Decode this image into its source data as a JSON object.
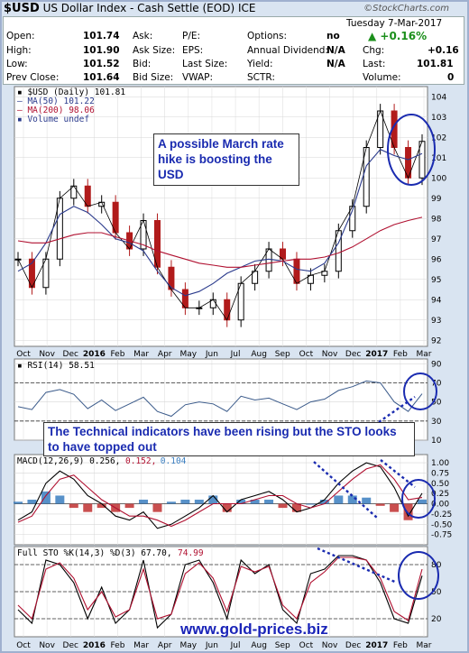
{
  "header": {
    "ticker": "$USD",
    "name": "US Dollar Index - Cash Settle (EOD)",
    "exchange": "ICE",
    "brand": "©StockCharts.com"
  },
  "quote": {
    "date": "Tuesday  7-Mar-2017",
    "chg_pct": "▲ +0.16%",
    "rows": [
      {
        "label": "Open:",
        "value": "101.74",
        "label2": "Ask:",
        "value2": "",
        "label3": "P/E:",
        "value3": "",
        "label4": "Options:",
        "value4": "no"
      },
      {
        "label": "High:",
        "value": "101.90",
        "label2": "Ask Size:",
        "value2": "",
        "label3": "EPS:",
        "value3": "",
        "label4": "Annual Dividend:",
        "value4": "N/A",
        "label5": "Chg:",
        "value5": "+0.16"
      },
      {
        "label": "Low:",
        "value": "101.52",
        "label2": "Bid:",
        "value2": "",
        "label3": "Last Size:",
        "value3": "",
        "label4": "Yield:",
        "value4": "N/A",
        "label5": "Last:",
        "value5": "101.81"
      },
      {
        "label": "Prev Close:",
        "value": "101.64",
        "label2": "Bid Size:",
        "value2": "",
        "label3": "VWAP:",
        "value3": "",
        "label4": "SCTR:",
        "value4": "",
        "label5": "Volume:",
        "value5": "0"
      }
    ]
  },
  "annotations": {
    "note_price": "A possible March rate hike is boosting the USD",
    "note_indicators": "The Technical indicators have been rising but the STO looks to have topped out",
    "website": "www.gold-prices.biz"
  },
  "colors": {
    "price_up": "#000000",
    "price_down": "#b11b1b",
    "ma50": "#2a3a8c",
    "ma200": "#b01030",
    "rsi": "#3a5a8a",
    "macd_hist_up": "#3a7ec0",
    "macd_hist_down": "#c03030",
    "annotation": "#1a2bb0",
    "panel_bg": "#ffffff"
  },
  "chart_data": [
    {
      "type": "line",
      "panel": "price",
      "legend": [
        "▪ $USD (Daily) 101.81",
        "— MA(50) 101.22",
        "— MA(200) 98.06",
        "▪ Volume undef"
      ],
      "ylim": [
        91.7,
        104.5
      ],
      "y_ticks": [
        92,
        93,
        94,
        95,
        96,
        97,
        98,
        99,
        100,
        101,
        102,
        103,
        104
      ],
      "x_labels": [
        "Oct",
        "Nov",
        "Dec",
        "2016",
        "Feb",
        "Mar",
        "Apr",
        "May",
        "Jun",
        "Jul",
        "Aug",
        "Sep",
        "Oct",
        "Nov",
        "Dec",
        "2017",
        "Feb",
        "Mar"
      ],
      "series": [
        {
          "name": "$USD",
          "values": [
            96.0,
            94.6,
            96.0,
            99.0,
            99.6,
            98.6,
            98.8,
            97.3,
            96.5,
            97.9,
            95.6,
            94.5,
            93.6,
            93.6,
            94.0,
            93.0,
            94.8,
            95.4,
            96.5,
            96.0,
            94.8,
            95.2,
            95.4,
            97.4,
            98.6,
            101.5,
            103.3,
            101.5,
            100.0,
            101.8
          ]
        },
        {
          "name": "MA(50)",
          "values": [
            95.4,
            95.8,
            96.8,
            98.2,
            98.6,
            98.3,
            97.7,
            97.0,
            96.8,
            96.4,
            95.4,
            94.6,
            94.2,
            94.4,
            94.8,
            95.3,
            95.6,
            95.9,
            96.0,
            95.9,
            95.5,
            95.4,
            95.8,
            96.8,
            98.4,
            100.6,
            101.4,
            101.1,
            100.9,
            101.2
          ]
        },
        {
          "name": "MA(200)",
          "values": [
            96.9,
            96.8,
            96.8,
            97.0,
            97.2,
            97.3,
            97.3,
            97.1,
            96.9,
            96.7,
            96.4,
            96.2,
            96.0,
            95.8,
            95.7,
            95.6,
            95.6,
            95.7,
            95.8,
            95.9,
            96.0,
            96.0,
            96.1,
            96.3,
            96.6,
            97.0,
            97.4,
            97.7,
            97.9,
            98.06
          ]
        }
      ]
    },
    {
      "type": "line",
      "panel": "rsi",
      "legend": "▪ RSI(14) 58.51",
      "ylim": [
        10,
        95
      ],
      "y_ticks": [
        10,
        30,
        50,
        70,
        90
      ],
      "series": [
        {
          "name": "RSI(14)",
          "values": [
            45,
            42,
            60,
            63,
            58,
            43,
            52,
            41,
            48,
            55,
            40,
            35,
            47,
            50,
            48,
            40,
            56,
            52,
            54,
            48,
            42,
            50,
            53,
            62,
            66,
            72,
            70,
            50,
            40,
            58.51
          ]
        }
      ]
    },
    {
      "type": "line",
      "panel": "macd",
      "legend": [
        "MACD(12,26,9) 0.256,",
        "0.152,",
        "0.104"
      ],
      "ylim": [
        -1.0,
        1.2
      ],
      "y_ticks": [
        -0.75,
        -0.5,
        -0.25,
        0.0,
        0.25,
        0.5,
        0.75,
        1.0
      ],
      "series": [
        {
          "name": "MACD",
          "values": [
            -0.4,
            -0.2,
            0.5,
            0.8,
            0.6,
            0.2,
            0.0,
            -0.3,
            -0.4,
            -0.2,
            -0.6,
            -0.5,
            -0.3,
            -0.1,
            0.2,
            -0.2,
            0.1,
            0.2,
            0.3,
            0.1,
            -0.2,
            -0.1,
            0.1,
            0.5,
            0.8,
            1.0,
            0.9,
            0.4,
            -0.3,
            0.256
          ]
        },
        {
          "name": "Signal",
          "values": [
            -0.45,
            -0.3,
            0.2,
            0.6,
            0.7,
            0.4,
            0.1,
            -0.1,
            -0.3,
            -0.3,
            -0.4,
            -0.55,
            -0.4,
            -0.2,
            0.0,
            0.0,
            0.0,
            0.1,
            0.2,
            0.2,
            0.0,
            -0.1,
            0.0,
            0.3,
            0.6,
            0.85,
            0.95,
            0.6,
            0.1,
            0.152
          ]
        },
        {
          "name": "Histogram",
          "values": [
            0.05,
            0.1,
            0.3,
            0.2,
            -0.1,
            -0.2,
            -0.1,
            -0.2,
            -0.1,
            0.1,
            -0.2,
            0.05,
            0.1,
            0.1,
            0.2,
            -0.2,
            0.1,
            0.1,
            0.1,
            -0.1,
            -0.2,
            0.0,
            0.1,
            0.2,
            0.2,
            0.15,
            -0.05,
            -0.2,
            -0.4,
            0.104
          ]
        }
      ]
    },
    {
      "type": "line",
      "panel": "sto",
      "legend": [
        "Full STO %K(14,3) %D(3) 67.70,",
        "74.99"
      ],
      "ylim": [
        0,
        100
      ],
      "y_ticks": [
        20,
        50,
        80
      ],
      "series": [
        {
          "name": "%K",
          "values": [
            30,
            15,
            85,
            80,
            60,
            20,
            55,
            15,
            30,
            85,
            10,
            25,
            80,
            85,
            60,
            20,
            85,
            70,
            80,
            30,
            15,
            70,
            75,
            90,
            90,
            85,
            60,
            20,
            15,
            67.7
          ]
        },
        {
          "name": "%D",
          "values": [
            35,
            20,
            75,
            82,
            65,
            30,
            50,
            22,
            30,
            75,
            20,
            25,
            70,
            82,
            65,
            28,
            78,
            72,
            78,
            35,
            20,
            60,
            72,
            88,
            88,
            85,
            65,
            28,
            18,
            74.99
          ]
        }
      ]
    }
  ]
}
